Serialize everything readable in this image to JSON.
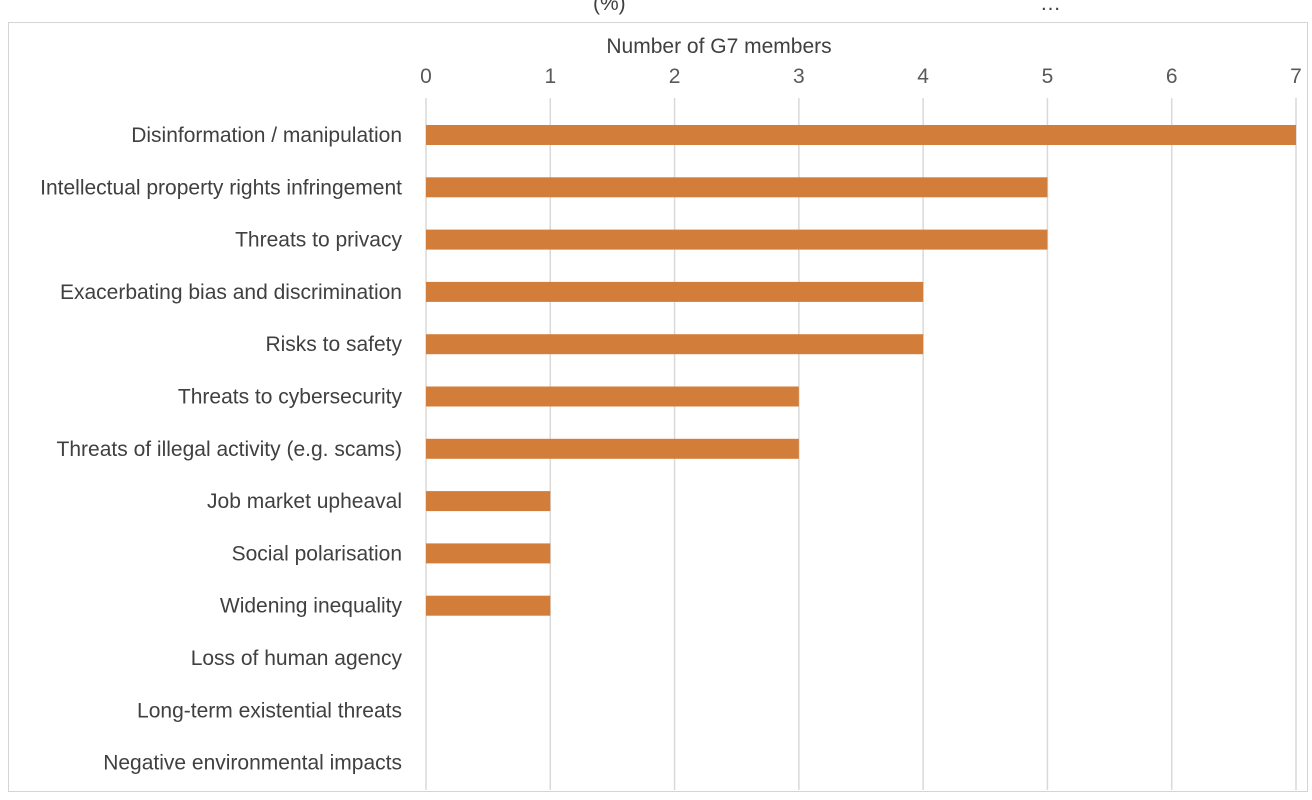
{
  "chart_data": {
    "type": "bar",
    "orientation": "horizontal",
    "xlabel": "Number of G7 members",
    "xlim": [
      0,
      7
    ],
    "xticks": [
      0,
      1,
      2,
      3,
      4,
      5,
      6,
      7
    ],
    "grid": true,
    "categories": [
      "Disinformation / manipulation",
      "Intellectual property rights infringement",
      "Threats to privacy",
      "Exacerbating bias and discrimination",
      "Risks to safety",
      "Threats to cybersecurity",
      "Threats of illegal activity (e.g. scams)",
      "Job market upheaval",
      "Social polarisation",
      "Widening inequality",
      "Loss of human agency",
      "Long-term existential threats",
      "Negative environmental impacts"
    ],
    "values": [
      7,
      5,
      5,
      4,
      4,
      3,
      3,
      1,
      1,
      1,
      0,
      0,
      0
    ],
    "bar_color": "#D27E3A",
    "grid_color": "#D9D9D9"
  }
}
